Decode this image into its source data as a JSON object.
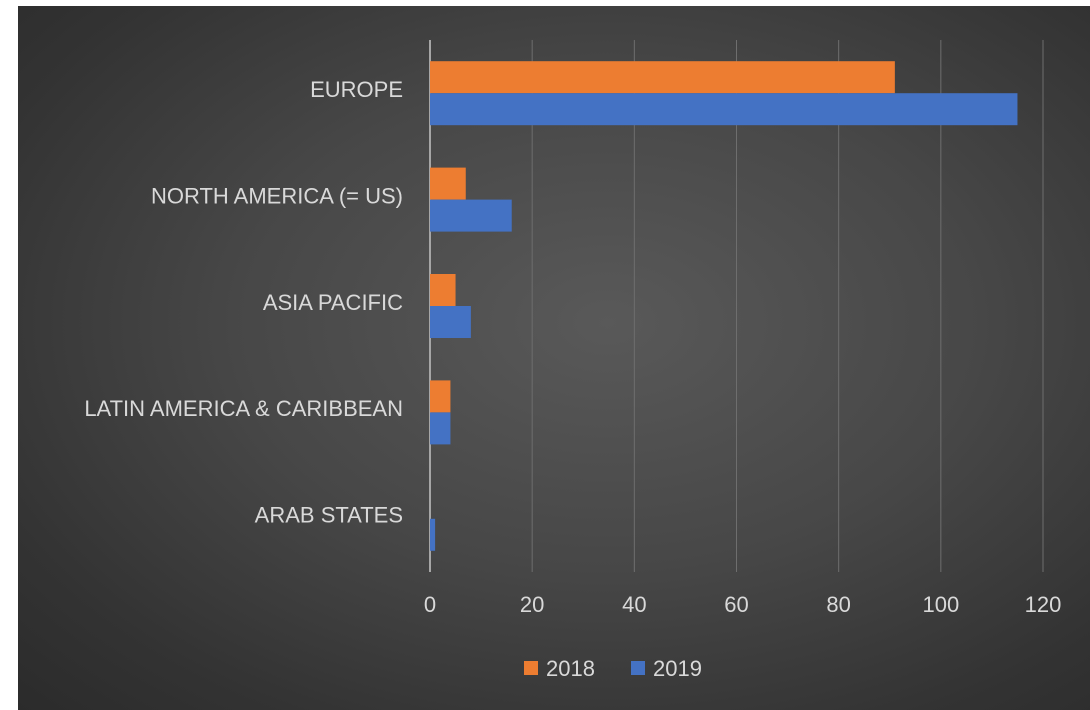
{
  "chart_data": {
    "type": "bar",
    "orientation": "horizontal",
    "categories": [
      "EUROPE",
      "NORTH AMERICA (= US)",
      "ASIA PACIFIC",
      "LATIN AMERICA & CARIBBEAN",
      "ARAB STATES"
    ],
    "series": [
      {
        "name": "2018",
        "color": "#ed7d31",
        "values": [
          91,
          7,
          5,
          4,
          0
        ]
      },
      {
        "name": "2019",
        "color": "#4472c4",
        "values": [
          115,
          16,
          8,
          4,
          1
        ]
      }
    ],
    "xlim": [
      0,
      120
    ],
    "xticks": [
      "0",
      "20",
      "40",
      "60",
      "80",
      "100",
      "120"
    ],
    "grid": true,
    "legend": "bottom"
  }
}
